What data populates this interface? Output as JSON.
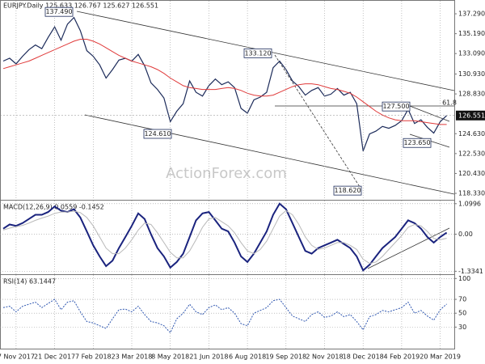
{
  "chart_data": [
    {
      "type": "line",
      "title": "EURJPY.Daily  125.633 126.767 125.627 126.551",
      "watermark": "ActionForex.com",
      "categories": [
        null,
        null,
        "7 Nov 2017",
        null,
        null,
        null,
        null,
        null,
        "21 Dec 2017",
        null,
        null,
        null,
        null,
        null,
        "7 Feb 2018",
        null,
        null,
        null,
        null,
        null,
        "23 Mar 2018",
        null,
        null,
        null,
        null,
        null,
        "8 May 2018",
        null,
        null,
        null,
        null,
        null,
        "21 Jun 2018",
        null,
        null,
        null,
        null,
        null,
        "6 Aug 2018",
        null,
        null,
        null,
        null,
        null,
        "19 Sep 2018",
        null,
        null,
        null,
        null,
        null,
        "2 Nov 2018",
        null,
        null,
        null,
        null,
        null,
        "18 Dec 2018",
        null,
        null,
        null,
        null,
        null,
        "4 Feb 2019",
        null,
        null,
        null,
        null,
        null,
        "20 Mar 2019",
        null
      ],
      "ylim": [
        117.65,
        138.66
      ],
      "yticks": [
        {
          "value": 137.29,
          "label": "137.290"
        },
        {
          "value": 135.19,
          "label": "135.190"
        },
        {
          "value": 133.09,
          "label": "133.090"
        },
        {
          "value": 130.93,
          "label": "130.930"
        },
        {
          "value": 128.83,
          "label": "128.830"
        },
        {
          "value": 124.63,
          "label": "124.630"
        },
        {
          "value": 122.53,
          "label": "122.530"
        },
        {
          "value": 120.43,
          "label": "120.430"
        },
        {
          "value": 118.33,
          "label": "118.330"
        }
      ],
      "grid": true,
      "series": [
        {
          "color": "#1c2b5a",
          "values": [
            132.3,
            132.6,
            132.0,
            132.8,
            133.5,
            134.0,
            133.6,
            134.8,
            135.9,
            134.5,
            136.2,
            136.9,
            135.5,
            133.4,
            132.8,
            131.9,
            130.5,
            131.4,
            132.4,
            132.6,
            132.3,
            133.0,
            131.8,
            130.0,
            129.3,
            128.4,
            125.9,
            127.0,
            127.8,
            130.2,
            129.0,
            128.6,
            129.7,
            130.4,
            129.8,
            130.1,
            129.5,
            127.3,
            126.8,
            128.2,
            128.5,
            129.0,
            131.6,
            132.3,
            131.4,
            130.2,
            129.6,
            128.7,
            129.2,
            129.5,
            128.6,
            128.8,
            129.4,
            128.7,
            129.0,
            127.8,
            122.8,
            124.6,
            124.9,
            125.4,
            125.2,
            125.5,
            126.0,
            127.2,
            125.7,
            126.1,
            125.3,
            124.7,
            125.9,
            126.551
          ]
        },
        {
          "color": "#e03a3a",
          "values": [
            131.5,
            131.7,
            131.9,
            132.1,
            132.3,
            132.6,
            132.9,
            133.2,
            133.5,
            133.8,
            134.1,
            134.4,
            134.6,
            134.6,
            134.4,
            134.1,
            133.7,
            133.3,
            132.9,
            132.6,
            132.3,
            132.1,
            131.9,
            131.7,
            131.4,
            131.0,
            130.5,
            130.1,
            129.7,
            129.5,
            129.4,
            129.3,
            129.3,
            129.3,
            129.4,
            129.5,
            129.4,
            129.2,
            128.9,
            128.7,
            128.6,
            128.6,
            128.7,
            129.0,
            129.3,
            129.6,
            129.8,
            129.9,
            129.9,
            129.8,
            129.6,
            129.4,
            129.3,
            129.1,
            128.9,
            128.5,
            128.0,
            127.5,
            127.0,
            126.6,
            126.3,
            126.1,
            126.0,
            126.0,
            126.0,
            125.9,
            125.8,
            125.7,
            125.6,
            125.6
          ]
        }
      ],
      "annotations": [
        {
          "value": 137.49,
          "label": "137.490"
        },
        {
          "value": 133.12,
          "label": "133.120"
        },
        {
          "value": 124.61,
          "label": "124.610"
        },
        {
          "value": 118.62,
          "label": "118.620"
        },
        {
          "value": 127.5,
          "label": "127.500"
        },
        {
          "value": 123.65,
          "label": "123.650"
        },
        {
          "label": "61.8"
        }
      ]
    },
    {
      "type": "line",
      "title": "MACD(12,26,9) 0.0559 -0.1452",
      "ylim": [
        -1.44,
        1.21
      ],
      "yticks": [
        1.0996,
        {
          "value": 0,
          "label": "0.00"
        },
        -1.3341
      ],
      "grid": true,
      "series": [
        {
          "color": "#1a237e",
          "values": [
            0.2,
            0.35,
            0.3,
            0.4,
            0.55,
            0.7,
            0.7,
            0.8,
            1.0,
            0.85,
            0.8,
            0.9,
            0.6,
            0.1,
            -0.4,
            -0.8,
            -1.15,
            -0.95,
            -0.5,
            -0.1,
            0.3,
            0.75,
            0.55,
            0.0,
            -0.5,
            -0.8,
            -1.2,
            -1.0,
            -0.7,
            -0.1,
            0.5,
            0.75,
            0.8,
            0.5,
            0.2,
            0.1,
            -0.3,
            -0.8,
            -1.0,
            -0.7,
            -0.3,
            0.1,
            0.7,
            1.1,
            0.9,
            0.4,
            -0.1,
            -0.6,
            -0.7,
            -0.5,
            -0.4,
            -0.3,
            -0.2,
            -0.35,
            -0.5,
            -0.8,
            -1.3,
            -1.1,
            -0.8,
            -0.5,
            -0.3,
            -0.1,
            0.2,
            0.5,
            0.4,
            0.2,
            -0.1,
            -0.3,
            -0.1,
            0.0559
          ]
        },
        {
          "color": "#b8b8b8",
          "values": [
            0.15,
            0.22,
            0.27,
            0.32,
            0.4,
            0.5,
            0.58,
            0.65,
            0.75,
            0.8,
            0.8,
            0.83,
            0.78,
            0.6,
            0.3,
            -0.1,
            -0.5,
            -0.7,
            -0.7,
            -0.5,
            -0.2,
            0.15,
            0.4,
            0.35,
            0.05,
            -0.3,
            -0.65,
            -0.85,
            -0.85,
            -0.6,
            -0.2,
            0.25,
            0.55,
            0.6,
            0.45,
            0.3,
            0.05,
            -0.3,
            -0.6,
            -0.7,
            -0.55,
            -0.25,
            0.2,
            0.65,
            0.85,
            0.7,
            0.35,
            -0.1,
            -0.4,
            -0.55,
            -0.5,
            -0.4,
            -0.3,
            -0.3,
            -0.4,
            -0.55,
            -0.9,
            -1.05,
            -1.0,
            -0.8,
            -0.55,
            -0.3,
            -0.05,
            0.25,
            0.35,
            0.3,
            0.1,
            -0.15,
            -0.2,
            -0.1452
          ]
        }
      ]
    },
    {
      "type": "line",
      "title": "RSI(14) 63.1447",
      "ylim": [
        -1,
        105
      ],
      "yticks": [
        100,
        70,
        50,
        30
      ],
      "grid": true,
      "series": [
        {
          "color": "#2f57b0",
          "values": [
            58,
            60,
            52,
            60,
            63,
            66,
            58,
            64,
            70,
            55,
            66,
            68,
            52,
            38,
            36,
            32,
            28,
            42,
            55,
            56,
            52,
            60,
            48,
            38,
            36,
            32,
            22,
            42,
            50,
            63,
            52,
            48,
            58,
            62,
            55,
            58,
            50,
            35,
            32,
            50,
            54,
            58,
            68,
            70,
            58,
            46,
            42,
            38,
            48,
            52,
            44,
            46,
            52,
            45,
            48,
            38,
            26,
            45,
            48,
            54,
            52,
            55,
            58,
            66,
            50,
            54,
            46,
            40,
            55,
            63.1447
          ]
        }
      ]
    }
  ]
}
